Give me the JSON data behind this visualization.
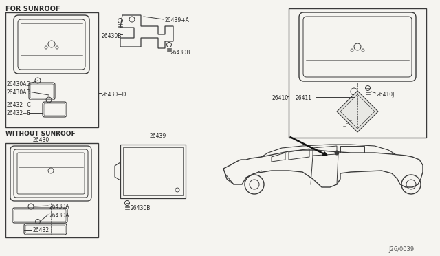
{
  "bg_color": "#f5f4f0",
  "line_color": "#3a3a3a",
  "text_color": "#2a2a2a",
  "diagram_id": "J26/0039",
  "labels": {
    "for_sunroof": "FOR SUNROOF",
    "without_sunroof": "WITHOUT SUNROOF",
    "part_26430": "26430",
    "part_26430AD_1": "26430AD",
    "part_26430AD_2": "26430AD",
    "part_26432C": "26432+C",
    "part_26432B": "26432+B",
    "part_26439A": "26439+A",
    "part_26430B_1": "26430B",
    "part_26430B_2": "26430B",
    "part_26430D": "26430+D",
    "part_26439": "26439",
    "part_26430A_1": "26430A",
    "part_26430A_2": "26430A",
    "part_26432": "26432",
    "part_26430B_3": "26430B",
    "part_26410": "26410",
    "part_26411": "26411",
    "part_26410J": "26410J"
  }
}
